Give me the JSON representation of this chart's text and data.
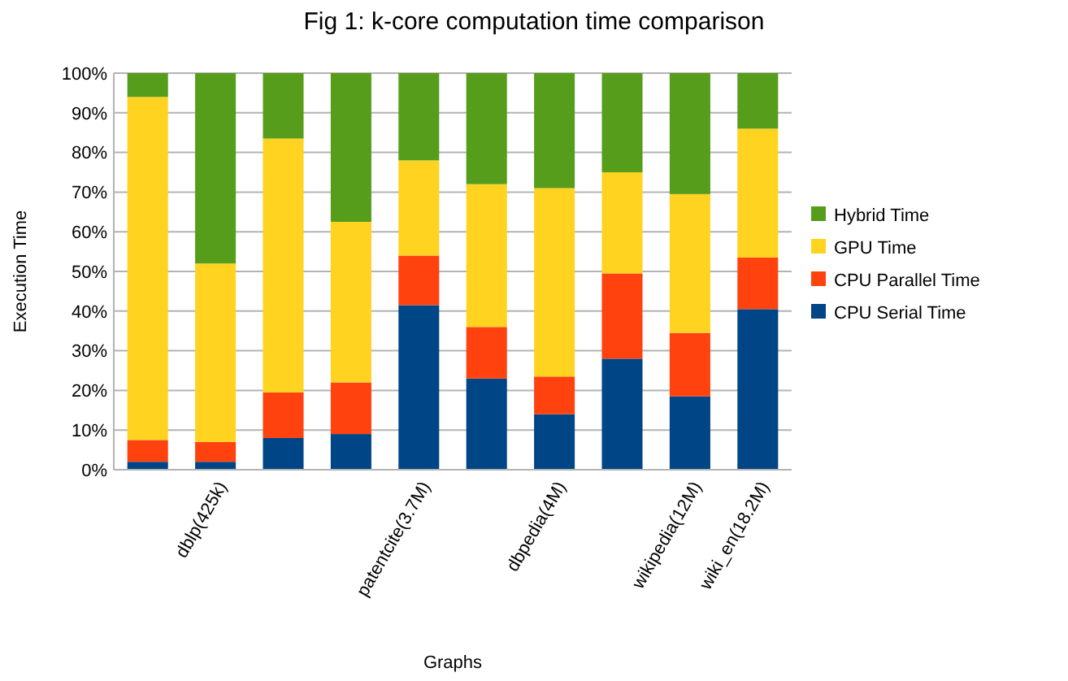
{
  "chart_data": {
    "type": "bar",
    "stacked": true,
    "title": "Fig 1: k-core computation time comparison",
    "xlabel": "Graphs",
    "ylabel": "Execution Time",
    "categories": [
      null,
      "dblp(425k)",
      null,
      null,
      "patentcite(3.7M)",
      null,
      "dbpedia(4M)",
      null,
      "wikipedia(12M)",
      "wiki_en(18.2M)"
    ],
    "series": [
      {
        "name": "CPU Serial Time",
        "color": "#004586",
        "values": [
          2,
          2,
          8,
          9,
          41.5,
          23,
          14,
          28,
          18.5,
          40.5
        ]
      },
      {
        "name": "CPU Parallel Time",
        "color": "#ff420e",
        "values": [
          5.5,
          5,
          11.5,
          13,
          12.5,
          13,
          9.5,
          21.5,
          16,
          13
        ]
      },
      {
        "name": "GPU Time",
        "color": "#ffd320",
        "values": [
          86.5,
          45,
          64,
          40.5,
          24,
          36,
          47.5,
          25.5,
          35,
          32.5
        ]
      },
      {
        "name": "Hybrid Time",
        "color": "#579d1c",
        "values": [
          6,
          48,
          16.5,
          37.5,
          22,
          28,
          29,
          25,
          30.5,
          14
        ]
      }
    ],
    "ylim": [
      0,
      100
    ],
    "yticks": [
      {
        "value": 0,
        "label": "0%"
      },
      {
        "value": 10,
        "label": "10%"
      },
      {
        "value": 20,
        "label": "20%"
      },
      {
        "value": 30,
        "label": "30%"
      },
      {
        "value": 40,
        "label": "40%"
      },
      {
        "value": 50,
        "label": "50%"
      },
      {
        "value": 60,
        "label": "60%"
      },
      {
        "value": 70,
        "label": "70%"
      },
      {
        "value": 80,
        "label": "80%"
      },
      {
        "value": 90,
        "label": "90%"
      },
      {
        "value": 100,
        "label": "100%"
      }
    ],
    "grid": "y",
    "legend": "right"
  }
}
